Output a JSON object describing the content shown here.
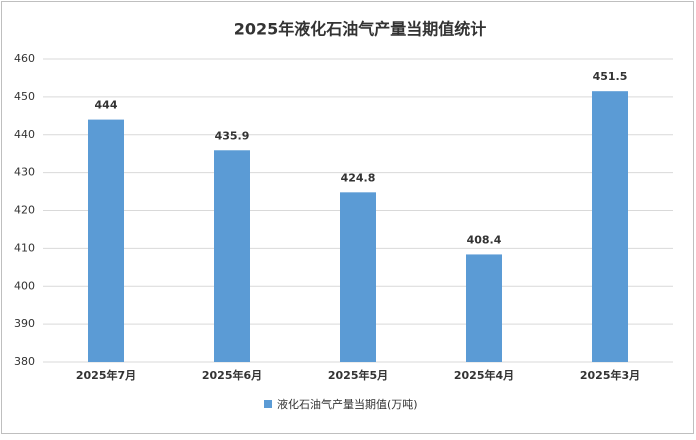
{
  "chart_data": {
    "type": "bar",
    "title": "2025年液化石油气产量当期值统计",
    "categories": [
      "2025年7月",
      "2025年6月",
      "2025年5月",
      "2025年4月",
      "2025年3月"
    ],
    "series": [
      {
        "name": "液化石油气产量当期值(万吨)",
        "color": "#5b9bd5",
        "values": [
          444,
          435.9,
          424.8,
          408.4,
          451.5
        ]
      }
    ],
    "ylim": [
      380,
      460
    ],
    "yticks": [
      380,
      390,
      400,
      410,
      420,
      430,
      440,
      450,
      460
    ],
    "grid": true,
    "legend": "bottom"
  }
}
